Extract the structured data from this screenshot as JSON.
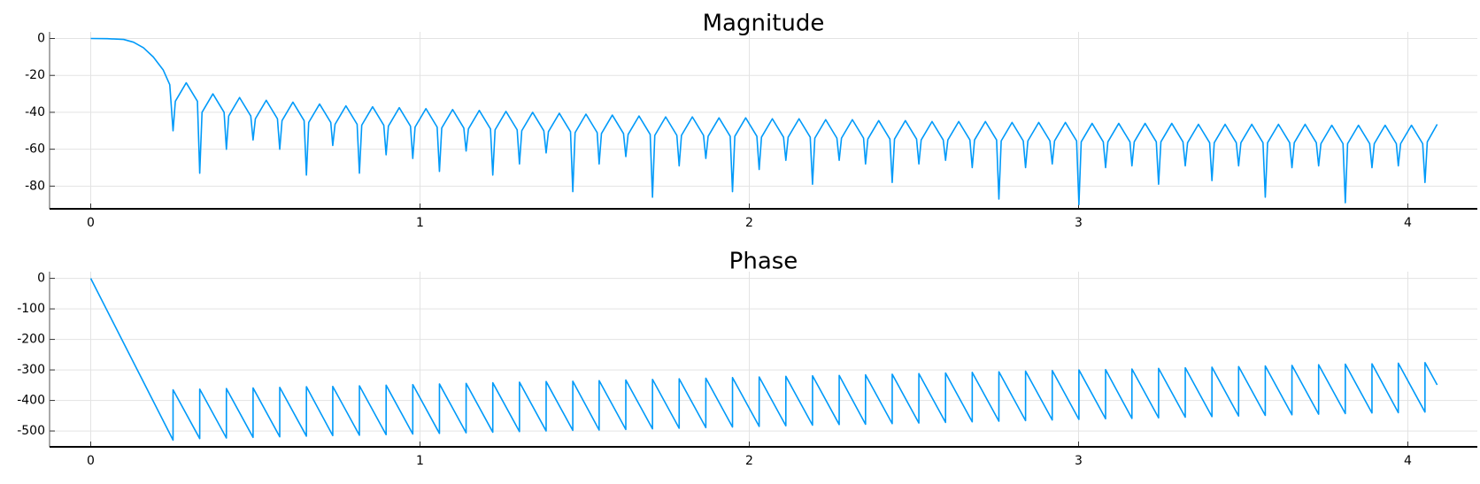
{
  "chart_data": [
    {
      "type": "line",
      "title": "Magnitude",
      "grid": true,
      "xlim": [
        -0.125,
        4.211
      ],
      "ylim": [
        -92.3,
        3.6
      ],
      "xticks": [
        0,
        1,
        2,
        3,
        4
      ],
      "yticks": [
        0,
        -20,
        -40,
        -60,
        -80
      ],
      "x": [
        0,
        0.05,
        0.1,
        0.13,
        0.16,
        0.19,
        0.22,
        0.24,
        0.25,
        0.257,
        0.29,
        0.324,
        0.331,
        0.338,
        0.371,
        0.405,
        0.412,
        0.419,
        0.452,
        0.486,
        0.493,
        0.5,
        0.533,
        0.567,
        0.574,
        0.581,
        0.614,
        0.648,
        0.655,
        0.662,
        0.695,
        0.729,
        0.735,
        0.742,
        0.775,
        0.809,
        0.816,
        0.823,
        0.856,
        0.89,
        0.897,
        0.904,
        0.937,
        0.971,
        0.978,
        0.985,
        1.018,
        1.052,
        1.059,
        1.066,
        1.099,
        1.133,
        1.14,
        1.147,
        1.18,
        1.214,
        1.221,
        1.228,
        1.261,
        1.295,
        1.302,
        1.309,
        1.342,
        1.376,
        1.383,
        1.39,
        1.423,
        1.457,
        1.464,
        1.471,
        1.504,
        1.538,
        1.544,
        1.551,
        1.584,
        1.618,
        1.625,
        1.632,
        1.665,
        1.699,
        1.706,
        1.713,
        1.746,
        1.78,
        1.787,
        1.794,
        1.827,
        1.861,
        1.868,
        1.875,
        1.908,
        1.942,
        1.949,
        1.956,
        1.989,
        2.023,
        2.03,
        2.037,
        2.07,
        2.104,
        2.111,
        2.118,
        2.151,
        2.185,
        2.192,
        2.199,
        2.232,
        2.266,
        2.273,
        2.28,
        2.313,
        2.347,
        2.353,
        2.36,
        2.393,
        2.427,
        2.434,
        2.441,
        2.474,
        2.508,
        2.515,
        2.522,
        2.555,
        2.589,
        2.596,
        2.603,
        2.636,
        2.67,
        2.677,
        2.684,
        2.717,
        2.751,
        2.758,
        2.765,
        2.798,
        2.832,
        2.839,
        2.846,
        2.879,
        2.913,
        2.92,
        2.927,
        2.96,
        2.994,
        3.001,
        3.008,
        3.041,
        3.075,
        3.082,
        3.089,
        3.122,
        3.156,
        3.162,
        3.169,
        3.202,
        3.236,
        3.243,
        3.25,
        3.283,
        3.317,
        3.324,
        3.331,
        3.364,
        3.398,
        3.405,
        3.412,
        3.445,
        3.479,
        3.486,
        3.493,
        3.526,
        3.56,
        3.567,
        3.574,
        3.607,
        3.641,
        3.648,
        3.655,
        3.688,
        3.722,
        3.729,
        3.736,
        3.769,
        3.803,
        3.81,
        3.817,
        3.85,
        3.884,
        3.891,
        3.898,
        3.931,
        3.965,
        3.971,
        3.978,
        4.011,
        4.045,
        4.052,
        4.059,
        4.089
      ],
      "series": [
        {
          "color": "#009af9",
          "values": [
            0,
            -0.1,
            -0.5,
            -2,
            -5,
            -10,
            -17,
            -25,
            -50,
            -34,
            -24,
            -34,
            -73,
            -40,
            -30,
            -40,
            -60,
            -42,
            -32,
            -42,
            -55,
            -43.5,
            -33.5,
            -43.5,
            -60,
            -44.5,
            -34.5,
            -44.5,
            -74,
            -45.5,
            -35.5,
            -45.5,
            -58,
            -46.5,
            -36.5,
            -46.5,
            -73,
            -47,
            -37,
            -47,
            -63,
            -47.5,
            -37.5,
            -47.5,
            -65,
            -48,
            -38,
            -48,
            -72,
            -48.5,
            -38.5,
            -48.5,
            -61,
            -49,
            -39,
            -49,
            -74,
            -49.5,
            -39.5,
            -49.5,
            -68,
            -50,
            -40,
            -50,
            -62,
            -50.5,
            -40.5,
            -50.5,
            -83,
            -51,
            -41,
            -51,
            -68,
            -51.5,
            -41.5,
            -51.5,
            -64,
            -52,
            -42,
            -52,
            -86,
            -52.5,
            -42.5,
            -52.5,
            -69,
            -52.5,
            -42.5,
            -52.5,
            -65,
            -53,
            -43,
            -53,
            -83,
            -53,
            -43,
            -53,
            -71,
            -53.5,
            -43.5,
            -53.5,
            -66,
            -53.5,
            -43.5,
            -53.5,
            -79,
            -54,
            -44,
            -54,
            -66,
            -54,
            -44,
            -54,
            -68,
            -54.5,
            -44.5,
            -54.5,
            -78,
            -54.5,
            -44.5,
            -54.5,
            -68,
            -55,
            -45,
            -55,
            -66,
            -55,
            -45,
            -55,
            -70,
            -55,
            -45,
            -55,
            -87,
            -55.5,
            -45.5,
            -55.5,
            -70,
            -55.5,
            -45.5,
            -55.5,
            -68,
            -55.5,
            -45.5,
            -55.5,
            -90,
            -56,
            -46,
            -56,
            -70,
            -56,
            -46,
            -56,
            -69,
            -56,
            -46,
            -56,
            -79,
            -56,
            -46,
            -56,
            -69,
            -56.5,
            -46.5,
            -56.5,
            -77,
            -56.5,
            -46.5,
            -56.5,
            -69,
            -56.5,
            -46.5,
            -56.5,
            -86,
            -56.5,
            -46.5,
            -56.5,
            -70,
            -56.5,
            -46.5,
            -56.5,
            -69,
            -57,
            -47,
            -57,
            -89,
            -57,
            -47,
            -57,
            -70,
            -57,
            -47,
            -57,
            -69,
            -57,
            -47,
            -57,
            -78,
            -56,
            -46.5
          ]
        }
      ]
    },
    {
      "type": "line",
      "title": "Phase",
      "grid": true,
      "xlim": [
        -0.125,
        4.211
      ],
      "ylim": [
        -552,
        22
      ],
      "xticks": [
        0,
        1,
        2,
        3,
        4
      ],
      "yticks": [
        0,
        -100,
        -200,
        -300,
        -400,
        -500
      ],
      "x": [
        0,
        0.25,
        0.25,
        0.331,
        0.331,
        0.412,
        0.412,
        0.493,
        0.493,
        0.574,
        0.574,
        0.655,
        0.655,
        0.735,
        0.735,
        0.816,
        0.816,
        0.897,
        0.897,
        0.978,
        0.978,
        1.059,
        1.059,
        1.14,
        1.14,
        1.221,
        1.221,
        1.302,
        1.302,
        1.383,
        1.383,
        1.464,
        1.464,
        1.544,
        1.544,
        1.625,
        1.625,
        1.706,
        1.706,
        1.787,
        1.787,
        1.868,
        1.868,
        1.949,
        1.949,
        2.03,
        2.03,
        2.111,
        2.111,
        2.192,
        2.192,
        2.273,
        2.273,
        2.353,
        2.353,
        2.434,
        2.434,
        2.515,
        2.515,
        2.596,
        2.596,
        2.677,
        2.677,
        2.758,
        2.758,
        2.839,
        2.839,
        2.92,
        2.92,
        3.001,
        3.001,
        3.082,
        3.082,
        3.162,
        3.162,
        3.243,
        3.243,
        3.324,
        3.324,
        3.405,
        3.405,
        3.486,
        3.486,
        3.567,
        3.567,
        3.648,
        3.648,
        3.729,
        3.729,
        3.81,
        3.81,
        3.891,
        3.891,
        3.971,
        3.971,
        4.052,
        4.052,
        4.089
      ],
      "series": [
        {
          "color": "#009af9",
          "values": [
            0,
            -530,
            -365,
            -525,
            -363,
            -523,
            -361,
            -521,
            -359,
            -519,
            -357,
            -517,
            -355,
            -515,
            -354,
            -514,
            -352,
            -512,
            -350,
            -510,
            -348,
            -508,
            -346,
            -506,
            -344,
            -504,
            -342,
            -502,
            -340,
            -500,
            -338,
            -498,
            -337,
            -497,
            -335,
            -495,
            -333,
            -493,
            -331,
            -491,
            -329,
            -489,
            -327,
            -487,
            -325,
            -485,
            -323,
            -483,
            -321,
            -481,
            -319,
            -479,
            -318,
            -478,
            -316,
            -476,
            -314,
            -474,
            -312,
            -472,
            -310,
            -470,
            -308,
            -468,
            -306,
            -466,
            -304,
            -464,
            -302,
            -462,
            -300,
            -460,
            -299,
            -459,
            -297,
            -457,
            -295,
            -455,
            -293,
            -453,
            -291,
            -451,
            -289,
            -449,
            -287,
            -447,
            -285,
            -445,
            -283,
            -443,
            -281,
            -441,
            -280,
            -440,
            -278,
            -438,
            -276,
            -349
          ]
        }
      ]
    }
  ]
}
